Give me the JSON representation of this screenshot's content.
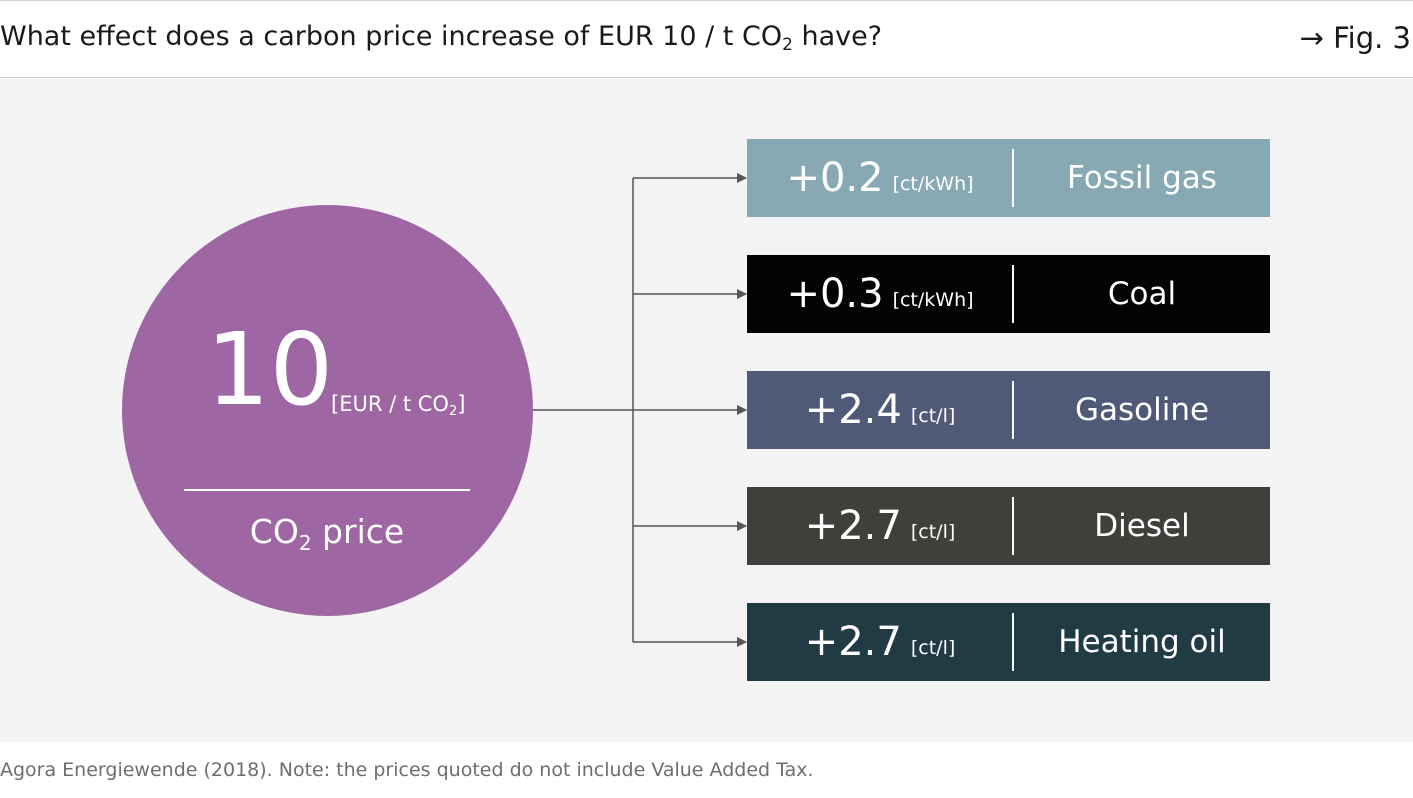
{
  "header": {
    "title_prefix": "What effect does a carbon price increase of EUR 10 / t CO",
    "title_sub": "2",
    "title_suffix": " have?",
    "figure_ref": "→ Fig. 3"
  },
  "circle": {
    "value": "10",
    "unit_prefix": "[EUR / t CO",
    "unit_sub": "2",
    "unit_suffix": "]",
    "label_prefix": "CO",
    "label_sub": "2",
    "label_suffix": " price",
    "color": "#9e67a4"
  },
  "items": [
    {
      "value": "+0.2",
      "unit": "[ct/kWh]",
      "category": "Fossil gas",
      "color": "#87a9b3"
    },
    {
      "value": "+0.3",
      "unit": "[ct/kWh]",
      "category": "Coal",
      "color": "#030303"
    },
    {
      "value": "+2.4",
      "unit": "[ct/l]",
      "category": "Gasoline",
      "color": "#4f5978"
    },
    {
      "value": "+2.7",
      "unit": "[ct/l]",
      "category": "Diesel",
      "color": "#403f3b"
    },
    {
      "value": "+2.7",
      "unit": "[ct/l]",
      "category": "Heating oil",
      "color": "#203b44"
    }
  ],
  "footer": {
    "source": "Agora Energiewende (2018). Note: the prices quoted do not include Value Added Tax."
  }
}
